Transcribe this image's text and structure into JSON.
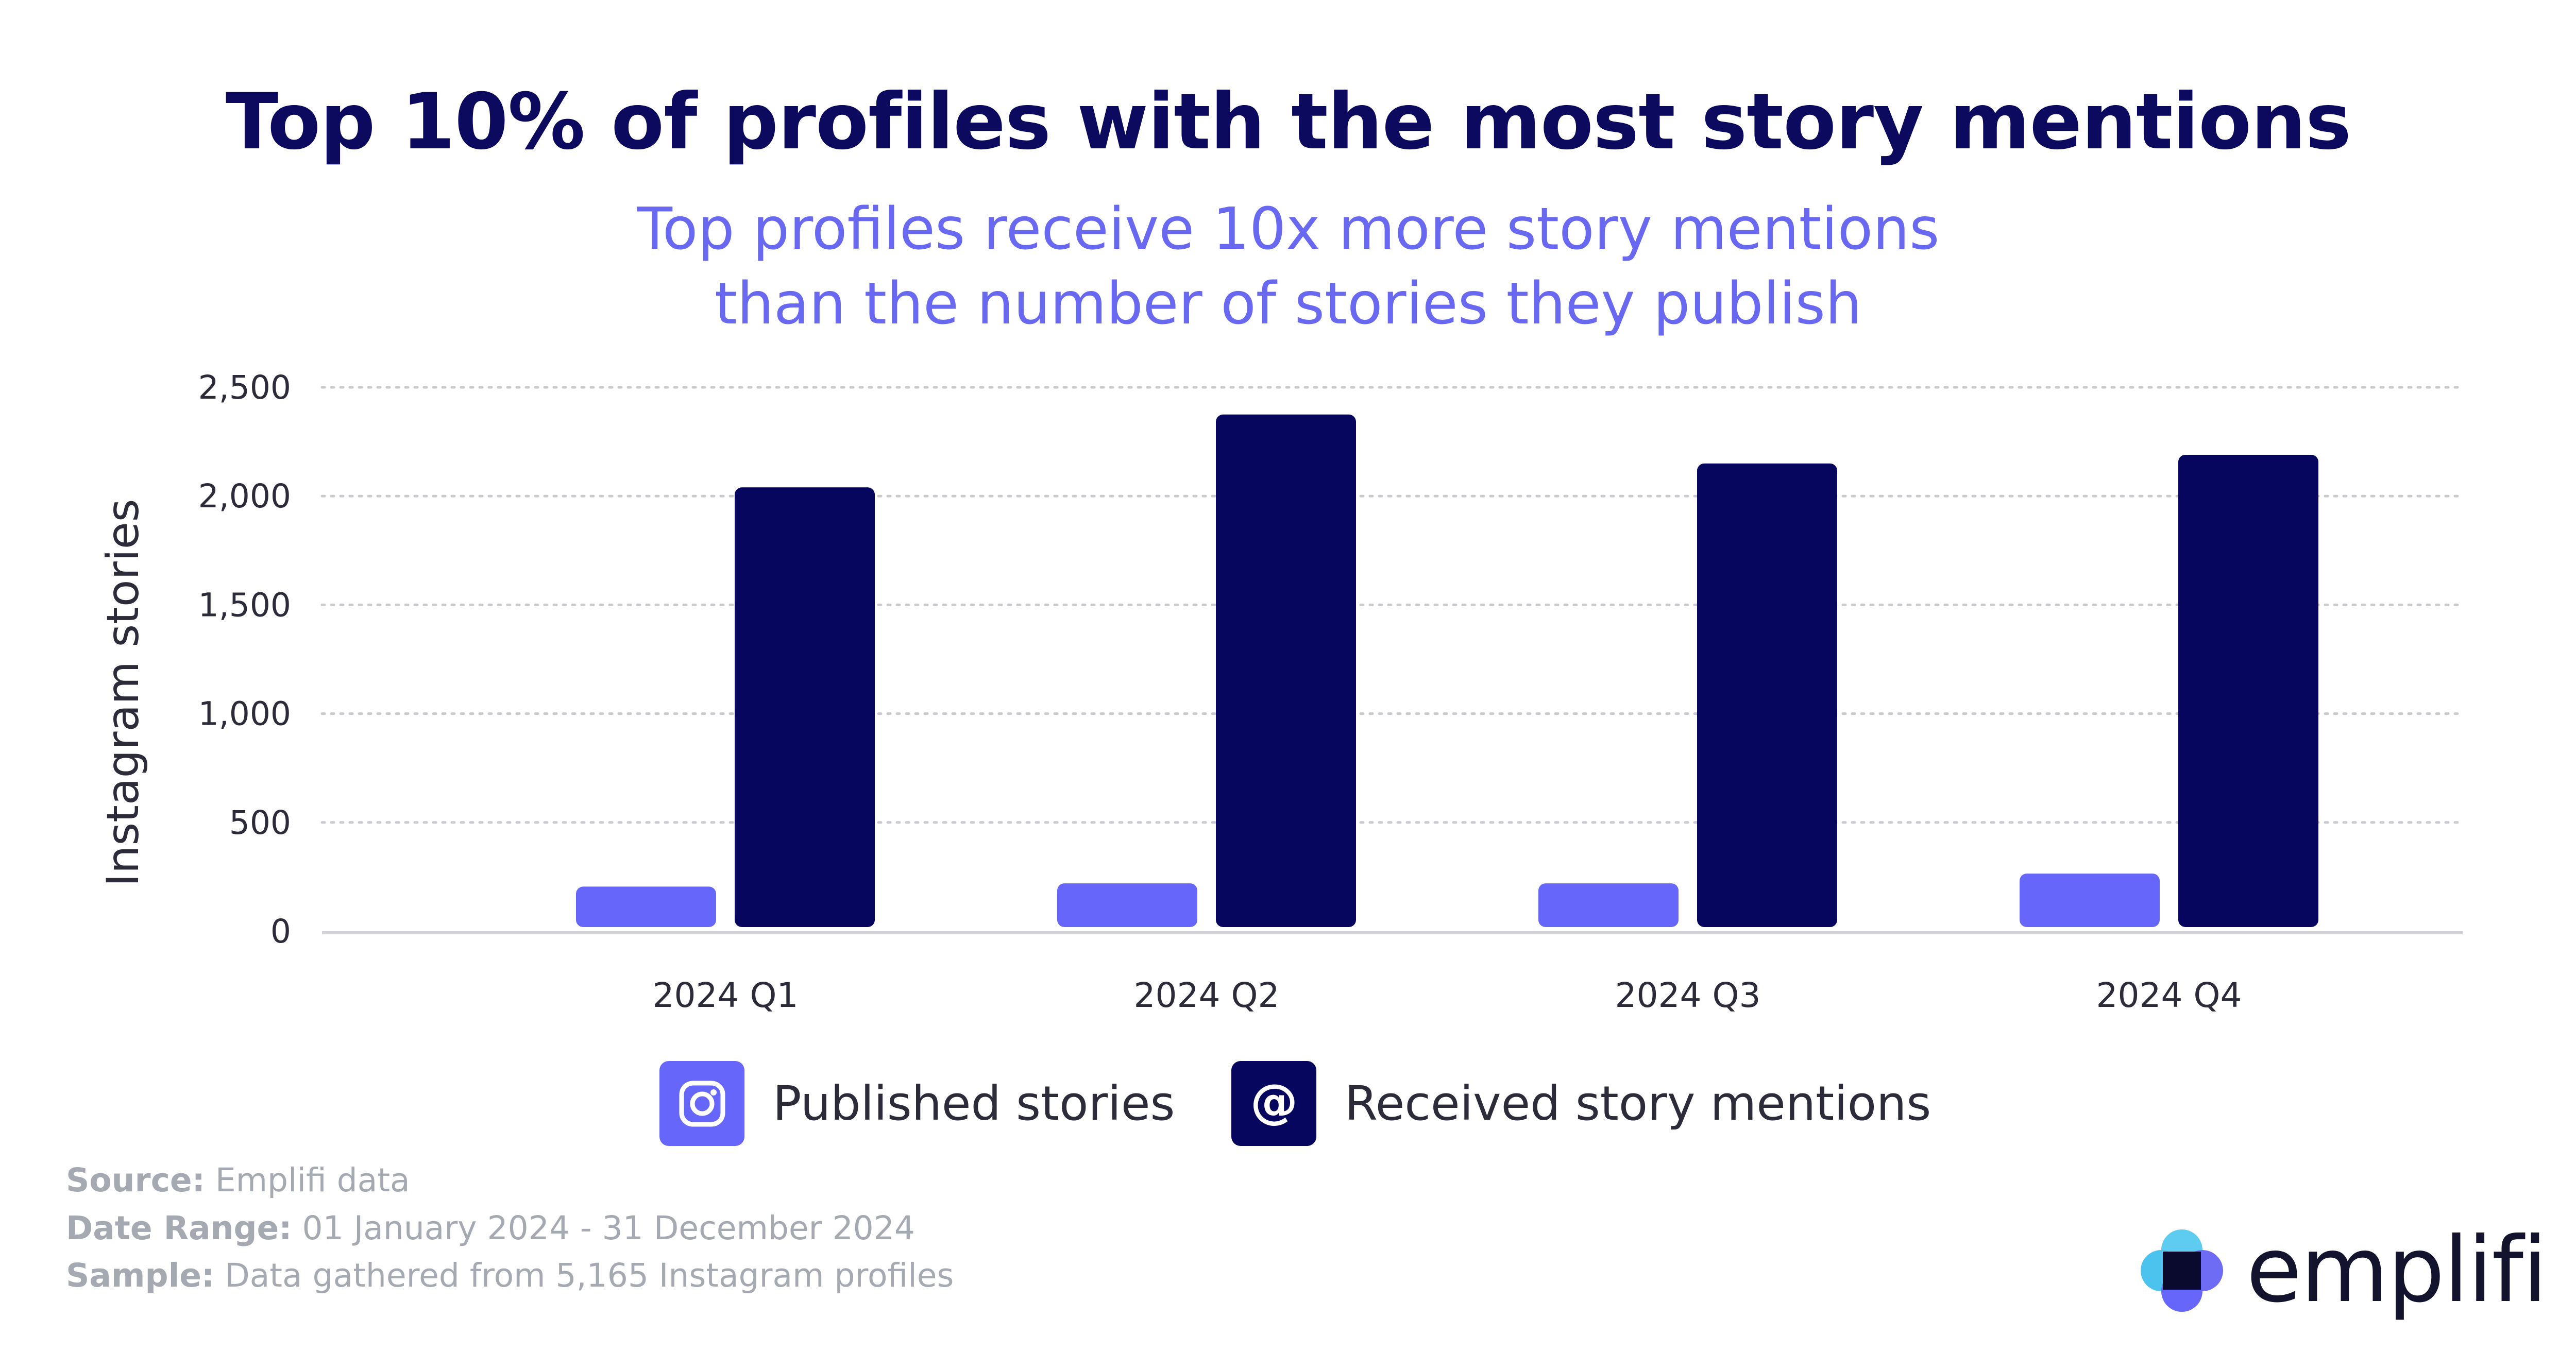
{
  "title": "Top 10% of profiles with the most story mentions",
  "subtitle_line1": "Top profiles receive 10x more story mentions",
  "subtitle_line2": "than the number of stories they publish",
  "colors": {
    "published": "#6766fa",
    "received": "#07065e",
    "title": "#0c0a5e",
    "subtitle": "#6868f0",
    "footer": "#a5a9b2"
  },
  "chart_data": {
    "type": "bar",
    "title": "Top 10% of profiles with the most story mentions",
    "ylabel": "Instagram stories",
    "xlabel": "",
    "categories": [
      "2024 Q1",
      "2024 Q2",
      "2024 Q3",
      "2024 Q4"
    ],
    "series": [
      {
        "name": "Published stories",
        "values": [
          205,
          220,
          220,
          265
        ]
      },
      {
        "name": "Received story mentions",
        "values": [
          2040,
          2375,
          2150,
          2190
        ]
      }
    ],
    "ylim": [
      0,
      2500
    ],
    "yticks": [
      0,
      500,
      1000,
      1500,
      2000,
      2500
    ],
    "ytick_labels": [
      "0",
      "500",
      "1,000",
      "1,500",
      "2,000",
      "2,500"
    ],
    "grid": true,
    "legend_position": "bottom"
  },
  "legend": {
    "published_label": "Published stories",
    "published_icon": "instagram-icon",
    "received_label": "Received story mentions",
    "received_icon": "at-sign-icon"
  },
  "footer": {
    "source_key": "Source:",
    "source_value": "Emplifi data",
    "range_key": "Date Range:",
    "range_value": "01 January 2024 - 31 December 2024",
    "sample_key": "Sample:",
    "sample_value": "Data gathered from 5,165 Instagram profiles"
  },
  "brand": {
    "name": "emplifi",
    "logo_icon": "emplifi-logo-icon"
  }
}
